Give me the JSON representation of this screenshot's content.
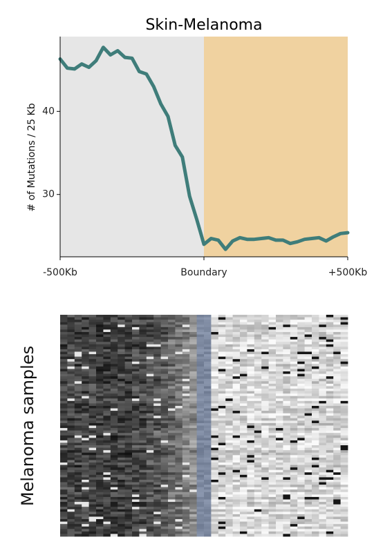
{
  "chart_data": [
    {
      "type": "line",
      "title": "Skin-Melanoma",
      "xlabel": "",
      "ylabel": "# of Mutations / 25 Kb",
      "xlim": [
        -500,
        500
      ],
      "ylim": [
        22.5,
        49
      ],
      "x_ticks": [
        {
          "value": -500,
          "label": "-500Kb"
        },
        {
          "value": 0,
          "label": "Boundary"
        },
        {
          "value": 500,
          "label": "+500Kb"
        }
      ],
      "y_ticks": [
        {
          "value": 30,
          "label": "30"
        },
        {
          "value": 40,
          "label": "40"
        }
      ],
      "regions": [
        {
          "from": -500,
          "to": 0,
          "color": "#e6e6e6"
        },
        {
          "from": 0,
          "to": 500,
          "color": "#f0d2a0"
        }
      ],
      "line_color": "#3f7d7a",
      "grid": false,
      "series": [
        {
          "x": [
            -500,
            -475,
            -450,
            -425,
            -400,
            -375,
            -350,
            -325,
            -300,
            -275,
            -250,
            -225,
            -200,
            -175,
            -150,
            -125,
            -100,
            -75,
            -50,
            -25,
            0,
            25,
            50,
            75,
            100,
            125,
            150,
            175,
            200,
            225,
            250,
            275,
            300,
            325,
            350,
            375,
            400,
            425,
            450,
            475,
            500
          ],
          "values": [
            46.3,
            45.2,
            45.1,
            45.7,
            45.3,
            46.1,
            47.7,
            46.8,
            47.3,
            46.5,
            46.4,
            44.8,
            44.5,
            43.0,
            40.9,
            39.4,
            35.9,
            34.5,
            29.8,
            27.0,
            24.0,
            24.7,
            24.5,
            23.4,
            24.4,
            24.8,
            24.6,
            24.6,
            24.7,
            24.8,
            24.5,
            24.5,
            24.1,
            24.3,
            24.6,
            24.7,
            24.8,
            24.4,
            24.9,
            25.3,
            25.4
          ]
        }
      ]
    },
    {
      "type": "heatmap",
      "ylabel": "Melanoma samples",
      "colormap": "grayscale",
      "boundary_color": "#8a93a6"
    }
  ]
}
